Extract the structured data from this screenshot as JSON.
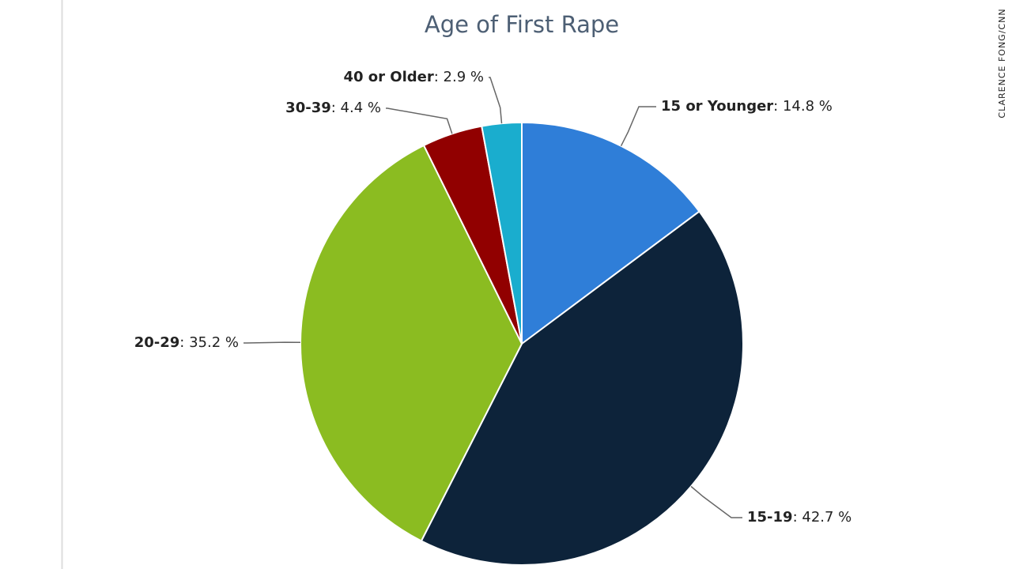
{
  "chart_data": {
    "type": "pie",
    "title": "Age of First Rape",
    "categories": [
      "15 or Younger",
      "15-19",
      "20-29",
      "30-39",
      "40 or Older"
    ],
    "values": [
      14.8,
      42.7,
      35.2,
      4.4,
      2.9
    ],
    "value_labels": [
      ": 14.8 %",
      ": 42.7 %",
      ": 35.2 %",
      ": 4.4 %",
      ": 2.9 %"
    ],
    "colors": [
      "#2f7ed8",
      "#0d233a",
      "#8bbc21",
      "#910000",
      "#1aadce"
    ],
    "credit": "CLARENCE FONG/CNN"
  }
}
